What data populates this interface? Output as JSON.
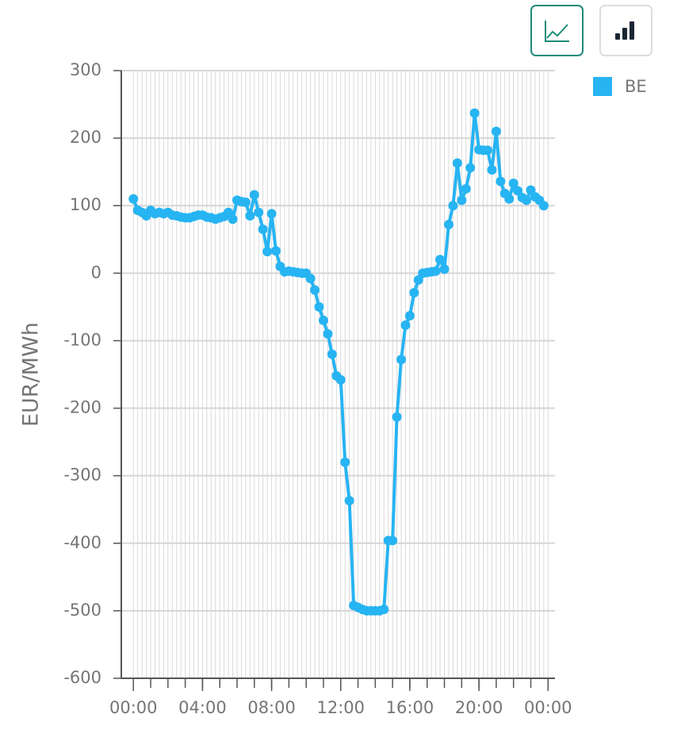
{
  "chart_data": {
    "type": "line",
    "y_label": "EUR/MWh",
    "x": [
      0,
      0.25,
      0.5,
      0.75,
      1,
      1.25,
      1.5,
      1.75,
      2,
      2.25,
      2.5,
      2.75,
      3,
      3.25,
      3.5,
      3.75,
      4,
      4.25,
      4.5,
      4.75,
      5,
      5.25,
      5.5,
      5.75,
      6,
      6.25,
      6.5,
      6.75,
      7,
      7.25,
      7.5,
      7.75,
      8,
      8.25,
      8.5,
      8.75,
      9,
      9.25,
      9.5,
      9.75,
      10,
      10.25,
      10.5,
      10.75,
      11,
      11.25,
      11.5,
      11.75,
      12,
      12.25,
      12.5,
      12.75,
      13,
      13.25,
      13.5,
      13.75,
      14,
      14.25,
      14.5,
      14.75,
      15,
      15.25,
      15.5,
      15.75,
      16,
      16.25,
      16.5,
      16.75,
      17,
      17.25,
      17.5,
      17.75,
      18,
      18.25,
      18.5,
      18.75,
      19,
      19.25,
      19.5,
      19.75,
      20,
      20.25,
      20.5,
      20.75,
      21,
      21.25,
      21.5,
      21.75,
      22,
      22.25,
      22.5,
      22.75,
      23,
      23.25,
      23.5,
      23.75
    ],
    "series": [
      {
        "name": "BE",
        "color": "#27b4f2",
        "values": [
          110,
          93,
          90,
          85,
          93,
          88,
          90,
          88,
          90,
          86,
          85,
          83,
          82,
          82,
          84,
          86,
          86,
          83,
          82,
          80,
          82,
          84,
          90,
          80,
          108,
          106,
          105,
          85,
          116,
          90,
          65,
          32,
          88,
          33,
          10,
          2,
          3,
          2,
          1,
          0,
          0,
          -8,
          -25,
          -50,
          -70,
          -90,
          -120,
          -152,
          -158,
          -280,
          -337,
          -492,
          -495,
          -498,
          -500,
          -500,
          -500,
          -500,
          -498,
          -396,
          -396,
          -213,
          -128,
          -77,
          -63,
          -29,
          -10,
          0,
          1,
          2,
          3,
          20,
          6,
          72,
          100,
          163,
          108,
          125,
          156,
          237,
          183,
          182,
          182,
          153,
          210,
          136,
          118,
          110,
          133,
          122,
          112,
          108,
          123,
          113,
          108,
          100
        ]
      }
    ],
    "xlim": [
      -0.7,
      24.4
    ],
    "xticks": [
      {
        "value": 0,
        "label": "00:00"
      },
      {
        "value": 4,
        "label": "04:00"
      },
      {
        "value": 8,
        "label": "08:00"
      },
      {
        "value": 12,
        "label": "12:00"
      },
      {
        "value": 16,
        "label": "16:00"
      },
      {
        "value": 20,
        "label": "20:00"
      },
      {
        "value": 24,
        "label": "00:00"
      }
    ],
    "ylim": [
      -600,
      300
    ],
    "yticks": [
      -600,
      -500,
      -400,
      -300,
      -200,
      -100,
      0,
      100,
      200,
      300
    ],
    "grid": true
  }
}
